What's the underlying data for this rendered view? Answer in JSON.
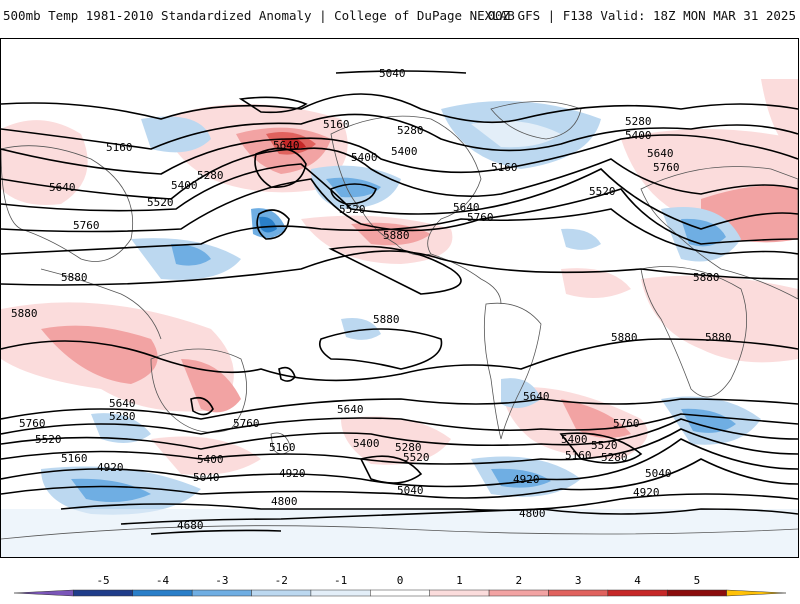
{
  "header": {
    "left": "500mb Temp 1981-2010 Standardized Anomaly | College of DuPage NEXLAB",
    "right": "00Z GFS | F138 Valid: 18Z MON MAR 31 2025"
  },
  "contour_labels": [
    "5040",
    "5160",
    "5280",
    "5400",
    "5640",
    "5160",
    "5400",
    "5520",
    "5280",
    "5400",
    "5160",
    "5640",
    "5760",
    "5520",
    "5280",
    "5400",
    "5640",
    "5520",
    "5760",
    "5640",
    "5880",
    "5760",
    "5880",
    "5880",
    "5880",
    "5880",
    "5880",
    "5880",
    "5760",
    "5640",
    "5520",
    "5160",
    "4920",
    "5280",
    "5400",
    "5040",
    "5640",
    "5760",
    "5400",
    "5160",
    "4920",
    "5280",
    "5040",
    "4800",
    "4680",
    "5520",
    "5400",
    "5640",
    "5760",
    "5520",
    "5280",
    "5040",
    "4920",
    "4920",
    "4800",
    "5160"
  ],
  "colorbar": {
    "ticks": [
      "-5",
      "-4",
      "-3",
      "-2",
      "-1",
      "0",
      "1",
      "2",
      "3",
      "4",
      "5"
    ],
    "colors": [
      "#7a55b8",
      "#1f3d8a",
      "#2a7fc9",
      "#6faee3",
      "#bcd8f0",
      "#e3eef8",
      "#ffffff",
      "#fbdcdc",
      "#f2a3a3",
      "#e0625e",
      "#c62828",
      "#8b0d0d",
      "#ffc107"
    ]
  },
  "map": {
    "background": "#ffffff",
    "land_outline_color": "#555555",
    "contour_color": "#000000"
  }
}
